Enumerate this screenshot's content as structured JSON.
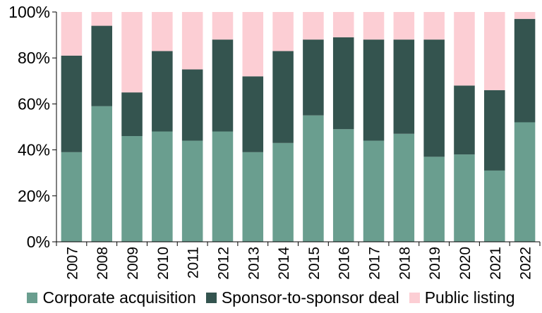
{
  "chart_data": {
    "type": "bar",
    "stacked": true,
    "categories": [
      "2007",
      "2008",
      "2009",
      "2010",
      "2011",
      "2012",
      "2013",
      "2014",
      "2015",
      "2016",
      "2017",
      "2018",
      "2019",
      "2020",
      "2021",
      "2022"
    ],
    "series": [
      {
        "name": "Corporate acquisition",
        "color": "#6a9e8f",
        "values": [
          39,
          59,
          46,
          48,
          44,
          48,
          39,
          43,
          55,
          49,
          44,
          47,
          37,
          38,
          31,
          52
        ]
      },
      {
        "name": "Sponsor-to-sponsor deal",
        "color": "#34544f",
        "values": [
          42,
          35,
          19,
          35,
          31,
          40,
          33,
          40,
          33,
          40,
          44,
          41,
          51,
          30,
          35,
          45
        ]
      },
      {
        "name": "Public listing",
        "color": "#fcced4",
        "values": [
          19,
          6,
          35,
          17,
          25,
          12,
          28,
          17,
          12,
          11,
          12,
          12,
          12,
          32,
          34,
          3
        ]
      }
    ],
    "ylim": [
      0,
      100
    ],
    "yticks": [
      0,
      20,
      40,
      60,
      80,
      100
    ],
    "ytick_labels": [
      "0%",
      "20%",
      "40%",
      "60%",
      "80%",
      "100%"
    ],
    "xlabel": "",
    "ylabel": "",
    "grid": false,
    "legend_position": "bottom"
  }
}
